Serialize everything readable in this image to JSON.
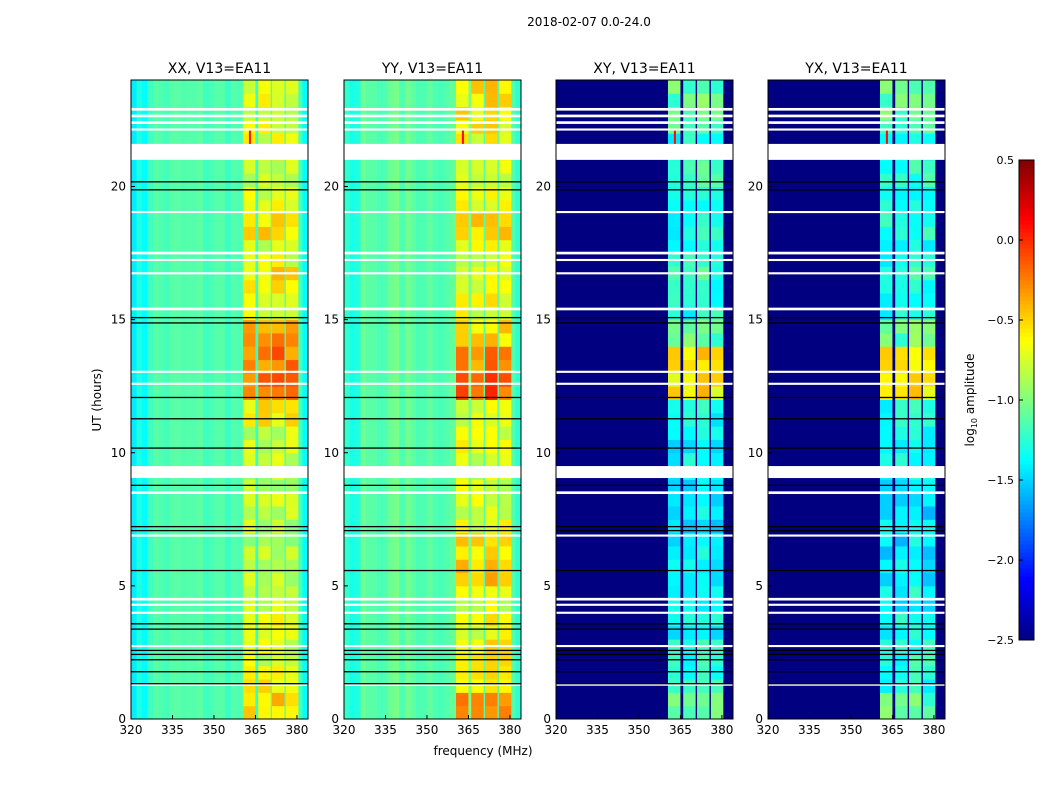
{
  "figure_title": "2018-02-07 0.0-24.0",
  "chart_data": {
    "type": "heatmap",
    "colormap": "jet",
    "xlabel": "frequency (MHz)",
    "ylabel": "UT (hours)",
    "xlim": [
      320,
      384
    ],
    "ylim": [
      0,
      24
    ],
    "xticks": [
      "320",
      "335",
      "350",
      "365",
      "380"
    ],
    "yticks": [
      "0",
      "5",
      "10",
      "15",
      "20"
    ],
    "bright_bands_MHz": [
      [
        360.5,
        365
      ],
      [
        366,
        370.5
      ],
      [
        371,
        375.5
      ],
      [
        376,
        380.5
      ]
    ],
    "flagged_white_h": [
      [
        21.0,
        21.6
      ],
      [
        9.05,
        9.5
      ],
      [
        22.85,
        22.95
      ],
      [
        22.6,
        22.7
      ],
      [
        22.35,
        22.45
      ],
      [
        22.1,
        22.18
      ],
      [
        17.45,
        17.55
      ],
      [
        17.2,
        17.28
      ],
      [
        15.35,
        15.45
      ],
      [
        13.0,
        13.08
      ],
      [
        12.55,
        12.63
      ],
      [
        8.45,
        8.55
      ],
      [
        4.45,
        4.55
      ],
      [
        4.25,
        4.33
      ],
      [
        3.95,
        4.03
      ],
      [
        6.85,
        6.93
      ],
      [
        2.7,
        2.78
      ],
      [
        1.25,
        1.33
      ],
      [
        19.0,
        19.08
      ],
      [
        16.7,
        16.78
      ]
    ],
    "black_lines_h": [
      20.2,
      19.9,
      15.1,
      14.9,
      12.1,
      11.3,
      10.2,
      8.8,
      7.1,
      7.25,
      5.6,
      3.6,
      3.4,
      2.6,
      2.45,
      2.25,
      1.8,
      1.35
    ],
    "flare": {
      "time_h": 21.35,
      "freq_MHz": 363,
      "log_amp": 0.5
    },
    "panels": [
      {
        "title": "XX, V13=EA11",
        "background": -1.15,
        "band_by_hour": [
          -0.55,
          -0.6,
          -0.75,
          -0.65,
          -0.85,
          -0.85,
          -0.85,
          -0.85,
          -0.85,
          -0.8,
          -0.8,
          -0.6,
          -0.2,
          -0.25,
          -0.4,
          -0.75,
          -0.6,
          -0.75,
          -0.55,
          -0.7,
          -0.8,
          -0.7,
          -0.7,
          -0.7
        ]
      },
      {
        "title": "YY, V13=EA11",
        "background": -1.1,
        "band_by_hour": [
          -0.35,
          -0.6,
          -0.65,
          -0.7,
          -0.75,
          -0.5,
          -0.55,
          -0.7,
          -0.75,
          -0.75,
          -0.7,
          -0.7,
          -0.15,
          -0.3,
          -0.55,
          -0.7,
          -0.65,
          -0.7,
          -0.55,
          -0.65,
          -0.7,
          -0.65,
          -0.6,
          -0.55
        ]
      },
      {
        "title": "XY, V13=EA11",
        "background": -2.5,
        "band_by_hour": [
          -1.1,
          -1.3,
          -1.3,
          -1.35,
          -1.4,
          -1.4,
          -1.45,
          -1.45,
          -1.4,
          -1.35,
          -1.4,
          -1.35,
          -0.6,
          -0.55,
          -1.1,
          -1.3,
          -1.25,
          -1.3,
          -1.3,
          -1.3,
          -1.25,
          -1.3,
          -1.1,
          -1.1
        ]
      },
      {
        "title": "YX, V13=EA11",
        "background": -2.5,
        "band_by_hour": [
          -1.1,
          -1.3,
          -1.3,
          -1.35,
          -1.4,
          -1.4,
          -1.45,
          -1.45,
          -1.4,
          -1.35,
          -1.4,
          -1.35,
          -0.6,
          -0.55,
          -1.1,
          -1.3,
          -1.25,
          -1.3,
          -1.3,
          -1.3,
          -1.25,
          -1.3,
          -1.1,
          -1.1
        ]
      }
    ],
    "colorbar": {
      "label_main": "log",
      "label_sub": "10",
      "label_rest": " amplitude",
      "range": [
        -2.5,
        0.5
      ],
      "ticks": [
        "0.5",
        "0.0",
        "−0.5",
        "−1.0",
        "−1.5",
        "−2.0",
        "−2.5"
      ]
    }
  }
}
